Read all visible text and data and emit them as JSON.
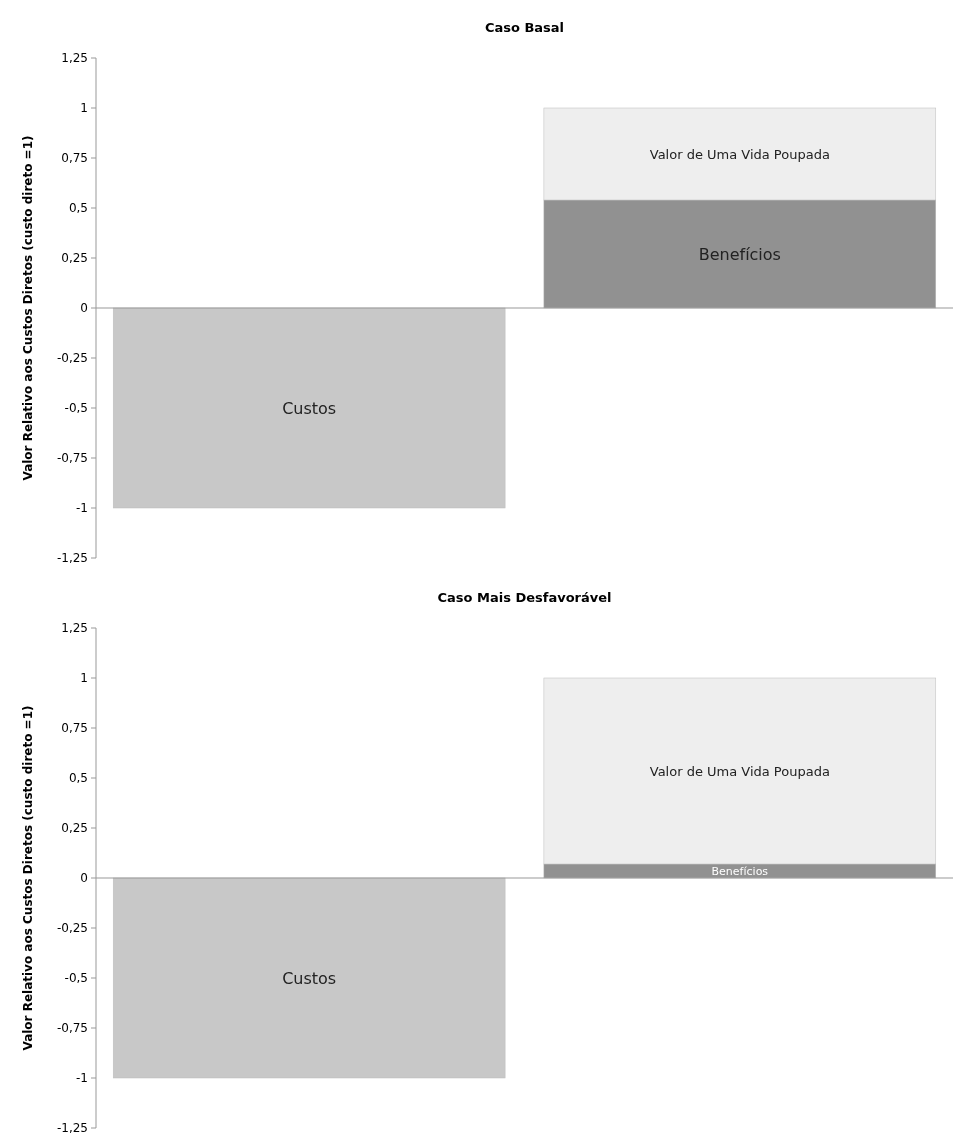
{
  "chart_data": [
    {
      "type": "bar",
      "title": "Caso Basal",
      "ylabel": "Valor Relativo aos Custos Diretos (custo direto =1)",
      "categories": [
        null,
        null
      ],
      "stacked": true,
      "ylim": [
        -1.25,
        1.25
      ],
      "yticks": [
        {
          "value": -1.25,
          "label": "-1,25"
        },
        -1,
        {
          "value": -0.75,
          "label": "-0,75"
        },
        {
          "value": -0.5,
          "label": "-0,5"
        },
        {
          "value": -0.25,
          "label": "-0,25"
        },
        0,
        {
          "value": 0.25,
          "label": "0,25"
        },
        {
          "value": 0.5,
          "label": "0,5"
        },
        {
          "value": 0.75,
          "label": "0,75"
        },
        1,
        {
          "value": 1.25,
          "label": "1,25"
        }
      ],
      "series": [
        {
          "name": "Custos",
          "color": "#c8c8c8",
          "values": [
            -1,
            null
          ]
        },
        {
          "name": "Benefícios",
          "color": "#919191",
          "values": [
            null,
            0.54
          ]
        },
        {
          "name": "Valor de Uma Vida Poupada",
          "color": "#eeeeee",
          "values": [
            null,
            0.46
          ]
        }
      ]
    },
    {
      "type": "bar",
      "title": "Caso Mais Desfavorável",
      "ylabel": "Valor Relativo aos Custos Diretos (custo direto =1)",
      "categories": [
        null,
        null
      ],
      "stacked": true,
      "ylim": [
        -1.25,
        1.25
      ],
      "yticks": [
        {
          "value": -1.25,
          "label": "-1,25"
        },
        -1,
        {
          "value": -0.75,
          "label": "-0,75"
        },
        {
          "value": -0.5,
          "label": "-0,5"
        },
        {
          "value": -0.25,
          "label": "-0,25"
        },
        0,
        {
          "value": 0.25,
          "label": "0,25"
        },
        {
          "value": 0.5,
          "label": "0,5"
        },
        {
          "value": 0.75,
          "label": "0,75"
        },
        1,
        {
          "value": 1.25,
          "label": "1,25"
        }
      ],
      "series": [
        {
          "name": "Custos",
          "color": "#c8c8c8",
          "values": [
            -1,
            null
          ]
        },
        {
          "name": "Benefícios",
          "color": "#919191",
          "values": [
            null,
            0.07
          ]
        },
        {
          "name": "Valor de Uma Vida Poupada",
          "color": "#eeeeee",
          "values": [
            null,
            0.93
          ]
        }
      ]
    }
  ]
}
